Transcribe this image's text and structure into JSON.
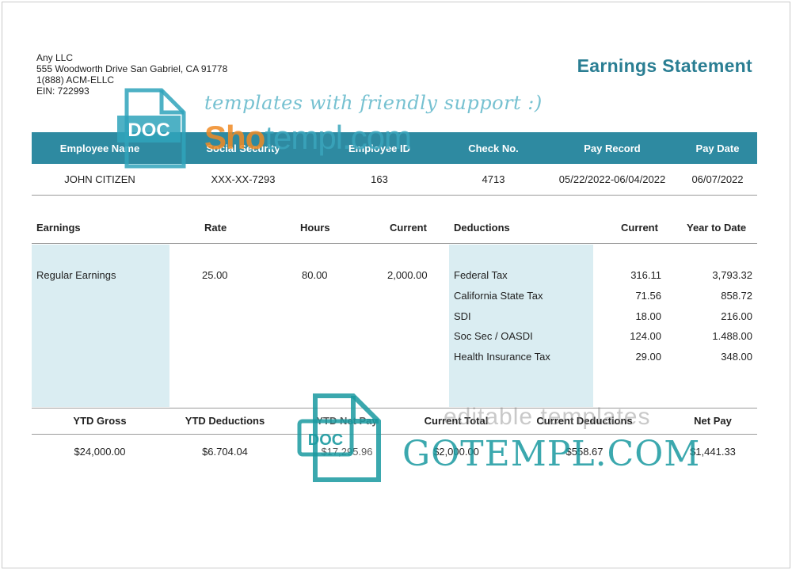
{
  "company": {
    "name": "Any LLC",
    "address": "555 Woodworth Drive San Gabriel, CA 91778",
    "phone": "1(888) ACM-ELLC",
    "ein": "EIN: 722993"
  },
  "title": "Earnings Statement",
  "employee_header": [
    "Employee Name",
    "Social Security",
    "Employee ID",
    "Check No.",
    "Pay Record",
    "Pay Date"
  ],
  "employee_info": [
    "JOHN CITIZEN",
    "XXX-XX-7293",
    "163",
    "4713",
    "05/22/2022-06/04/2022",
    "06/07/2022"
  ],
  "earnings_header": {
    "earnings": "Earnings",
    "rate": "Rate",
    "hours": "Hours",
    "current": "Current",
    "deductions": "Deductions",
    "ded_current": "Current",
    "ytd": "Year to Date"
  },
  "earnings": [
    {
      "name": "Regular Earnings",
      "rate": "25.00",
      "hours": "80.00",
      "current": "2,000.00"
    }
  ],
  "deductions": [
    {
      "name": "Federal Tax",
      "current": "316.11",
      "ytd": "3,793.32"
    },
    {
      "name": "California State Tax",
      "current": "71.56",
      "ytd": "858.72"
    },
    {
      "name": "SDI",
      "current": "18.00",
      "ytd": "216.00"
    },
    {
      "name": "Soc Sec / OASDI",
      "current": "124.00",
      "ytd": "1.488.00"
    },
    {
      "name": "Health Insurance Tax",
      "current": "29.00",
      "ytd": "348.00"
    }
  ],
  "totals_header": [
    "YTD Gross",
    "YTD Deductions",
    "YTD Net Pay",
    "Current Total",
    "Current Deductions",
    "Net Pay"
  ],
  "totals": [
    "$24,000.00",
    "$6.704.04",
    "$17,295.96",
    "$2,000.00",
    "$558.67",
    "$1,441.33"
  ],
  "watermarks": {
    "script": "templates with friendly support :)",
    "sho": "Sho",
    "sho_rest": "templ.com",
    "doc": "DOC",
    "editable": "editable templates",
    "gotempl": "GOTEMPL.COM"
  },
  "colors": {
    "accent": "#2e8aa1",
    "shade": "#daedf2",
    "title": "#2a7e93"
  }
}
